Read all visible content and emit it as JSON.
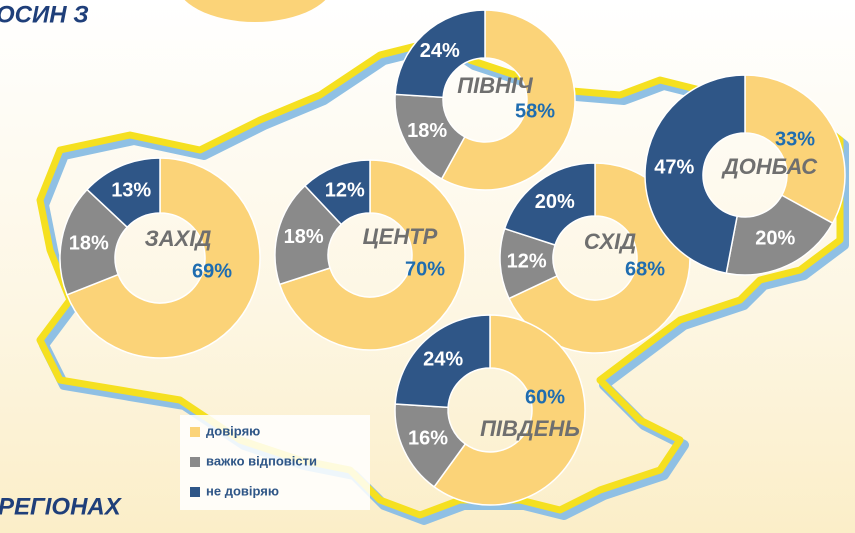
{
  "header": {
    "text": "ОСИН З"
  },
  "footer": {
    "text": "РЕГІОНАХ"
  },
  "legend": {
    "labels": [
      "довіряю",
      "важко відповісти",
      "не довіряю"
    ],
    "colors": [
      "#fbd378",
      "#8a8a8a",
      "#2f5687"
    ]
  },
  "chart_data": [
    {
      "type": "donut",
      "title": "ПІВНІЧ",
      "values": [
        58,
        18,
        24
      ],
      "value_labels": [
        "58%",
        "18%",
        "24%"
      ]
    },
    {
      "type": "donut",
      "title": "ЗАХІД",
      "values": [
        69,
        18,
        13
      ],
      "value_labels": [
        "69%",
        "18%",
        "13%"
      ]
    },
    {
      "type": "donut",
      "title": "ЦЕНТР",
      "values": [
        70,
        18,
        12
      ],
      "value_labels": [
        "70%",
        "18%",
        "12%"
      ]
    },
    {
      "type": "donut",
      "title": "СХІД",
      "values": [
        68,
        12,
        20
      ],
      "value_labels": [
        "68%",
        "12%",
        "20%"
      ]
    },
    {
      "type": "donut",
      "title": "ДОНБАС",
      "values": [
        33,
        20,
        47
      ],
      "value_labels": [
        "33%",
        "20%",
        "47%"
      ]
    },
    {
      "type": "donut",
      "title": "ПІВДЕНЬ",
      "values": [
        60,
        16,
        24
      ],
      "value_labels": [
        "60%",
        "16%",
        "24%"
      ]
    }
  ]
}
